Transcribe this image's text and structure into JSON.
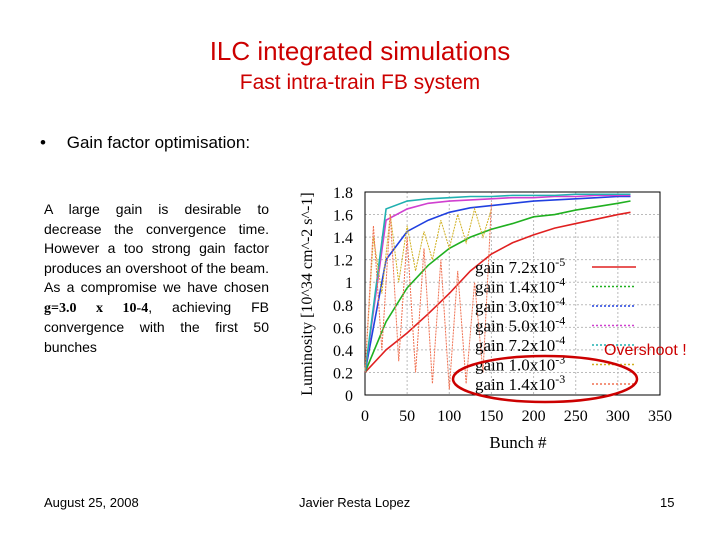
{
  "slide": {
    "title": "ILC integrated simulations",
    "subtitle": "Fast intra-train FB system",
    "bullet": "Gain factor optimisation:",
    "paragraph_before": "A large gain is desirable to decrease the convergence time. However a too strong gain factor produces an overshoot of the beam. As a compromise we have chosen ",
    "paragraph_value": "g=3.0 x 10-4",
    "paragraph_after": ", achieving FB convergence with the first 50 bunches",
    "annotation": "Overshoot !",
    "footer": {
      "date": "August 25, 2008",
      "author": "Javier Resta Lopez",
      "page": "15"
    }
  },
  "chart_data": {
    "type": "line",
    "xlabel": "Bunch #",
    "ylabel": "Luminosity [10^34 cm^-2 s^-1]",
    "xlim": [
      0,
      350
    ],
    "ylim": [
      0,
      1.8
    ],
    "x_ticks": [
      "0",
      "50",
      "100",
      "150",
      "200",
      "250",
      "300",
      "350"
    ],
    "y_ticks": [
      "0",
      "0.2",
      "0.4",
      "0.6",
      "0.8",
      "1",
      "1.2",
      "1.4",
      "1.6",
      "1.8"
    ],
    "grid": true,
    "legend_position": "bottom-right",
    "series": [
      {
        "name": "gain 7.2x10^-5",
        "color": "#e02020",
        "x": [
          0,
          25,
          50,
          75,
          100,
          125,
          150,
          175,
          200,
          225,
          250,
          275,
          300,
          315
        ],
        "values": [
          0.2,
          0.4,
          0.55,
          0.72,
          0.9,
          1.1,
          1.25,
          1.35,
          1.42,
          1.48,
          1.52,
          1.56,
          1.6,
          1.62
        ]
      },
      {
        "name": "gain 1.4x10^-4",
        "color": "#20b020",
        "x": [
          0,
          25,
          50,
          75,
          100,
          125,
          150,
          175,
          200,
          225,
          250,
          275,
          300,
          315
        ],
        "values": [
          0.2,
          0.65,
          0.95,
          1.15,
          1.3,
          1.4,
          1.47,
          1.52,
          1.58,
          1.6,
          1.64,
          1.67,
          1.7,
          1.72
        ]
      },
      {
        "name": "gain 3.0x10^-4",
        "color": "#2040e0",
        "x": [
          0,
          25,
          50,
          75,
          100,
          125,
          150,
          175,
          200,
          225,
          250,
          275,
          300,
          315
        ],
        "values": [
          0.2,
          1.2,
          1.45,
          1.55,
          1.62,
          1.66,
          1.68,
          1.7,
          1.72,
          1.73,
          1.74,
          1.75,
          1.76,
          1.76
        ]
      },
      {
        "name": "gain 5.0x10^-4",
        "color": "#d040d0",
        "x": [
          0,
          25,
          50,
          75,
          100,
          125,
          150,
          175,
          200,
          225,
          250,
          275,
          300,
          315
        ],
        "values": [
          0.2,
          1.55,
          1.65,
          1.7,
          1.72,
          1.73,
          1.74,
          1.75,
          1.75,
          1.76,
          1.76,
          1.77,
          1.77,
          1.77
        ]
      },
      {
        "name": "gain 7.2x10^-4",
        "color": "#20b0b0",
        "x": [
          0,
          25,
          50,
          75,
          100,
          125,
          150,
          175,
          200,
          225,
          250,
          275,
          300,
          315
        ],
        "values": [
          0.2,
          1.65,
          1.72,
          1.74,
          1.75,
          1.76,
          1.76,
          1.77,
          1.77,
          1.77,
          1.78,
          1.78,
          1.78,
          1.78
        ]
      },
      {
        "name": "gain 1.0x10^-3",
        "color": "#d0b020",
        "x": [
          0,
          10,
          20,
          30,
          40,
          50,
          60,
          70,
          80,
          90,
          100,
          110,
          120,
          130,
          140,
          150
        ],
        "values": [
          0.2,
          1.4,
          0.9,
          1.6,
          1.0,
          1.5,
          1.1,
          1.45,
          1.2,
          1.55,
          1.3,
          1.6,
          1.35,
          1.65,
          1.4,
          1.65
        ]
      },
      {
        "name": "gain 1.4x10^-3",
        "color": "#f07050",
        "x": [
          0,
          10,
          20,
          30,
          40,
          50,
          60,
          70,
          80,
          90,
          100,
          110,
          120,
          130,
          140,
          150
        ],
        "values": [
          0.2,
          1.5,
          0.4,
          1.6,
          0.3,
          1.4,
          0.2,
          1.3,
          0.1,
          1.2,
          0.05,
          1.1,
          0.1,
          1.0,
          0.2,
          1.7
        ]
      }
    ]
  }
}
